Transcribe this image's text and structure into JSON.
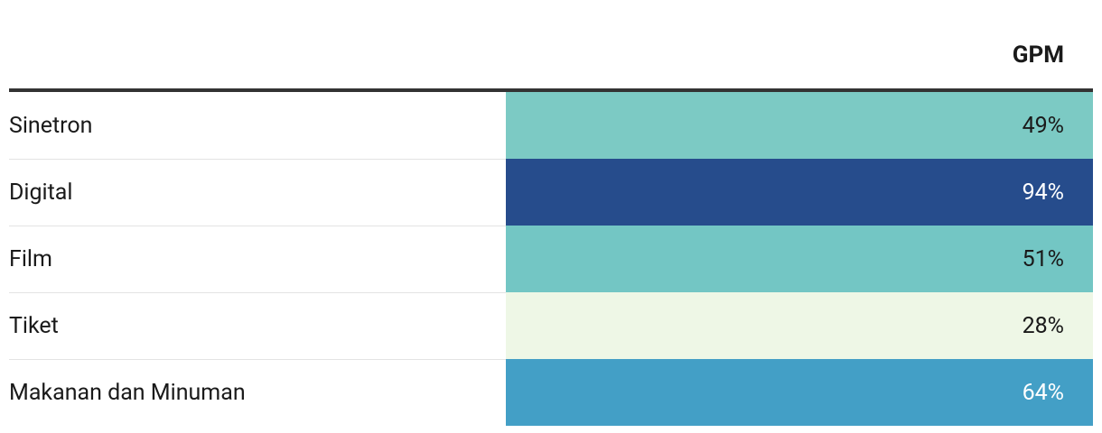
{
  "table": {
    "header": [
      "",
      "GPM"
    ],
    "rows": [
      [
        "Sinetron",
        "49%"
      ],
      [
        "Digital",
        "94%"
      ],
      [
        "Film",
        "51%"
      ],
      [
        "Tiket",
        "28%"
      ],
      [
        "Makanan dan Minuman",
        "64%"
      ]
    ],
    "cell_colors": [
      "#7ccac4",
      "#264c8c",
      "#73c6c4",
      "#eef7e6",
      "#439fc6"
    ]
  }
}
